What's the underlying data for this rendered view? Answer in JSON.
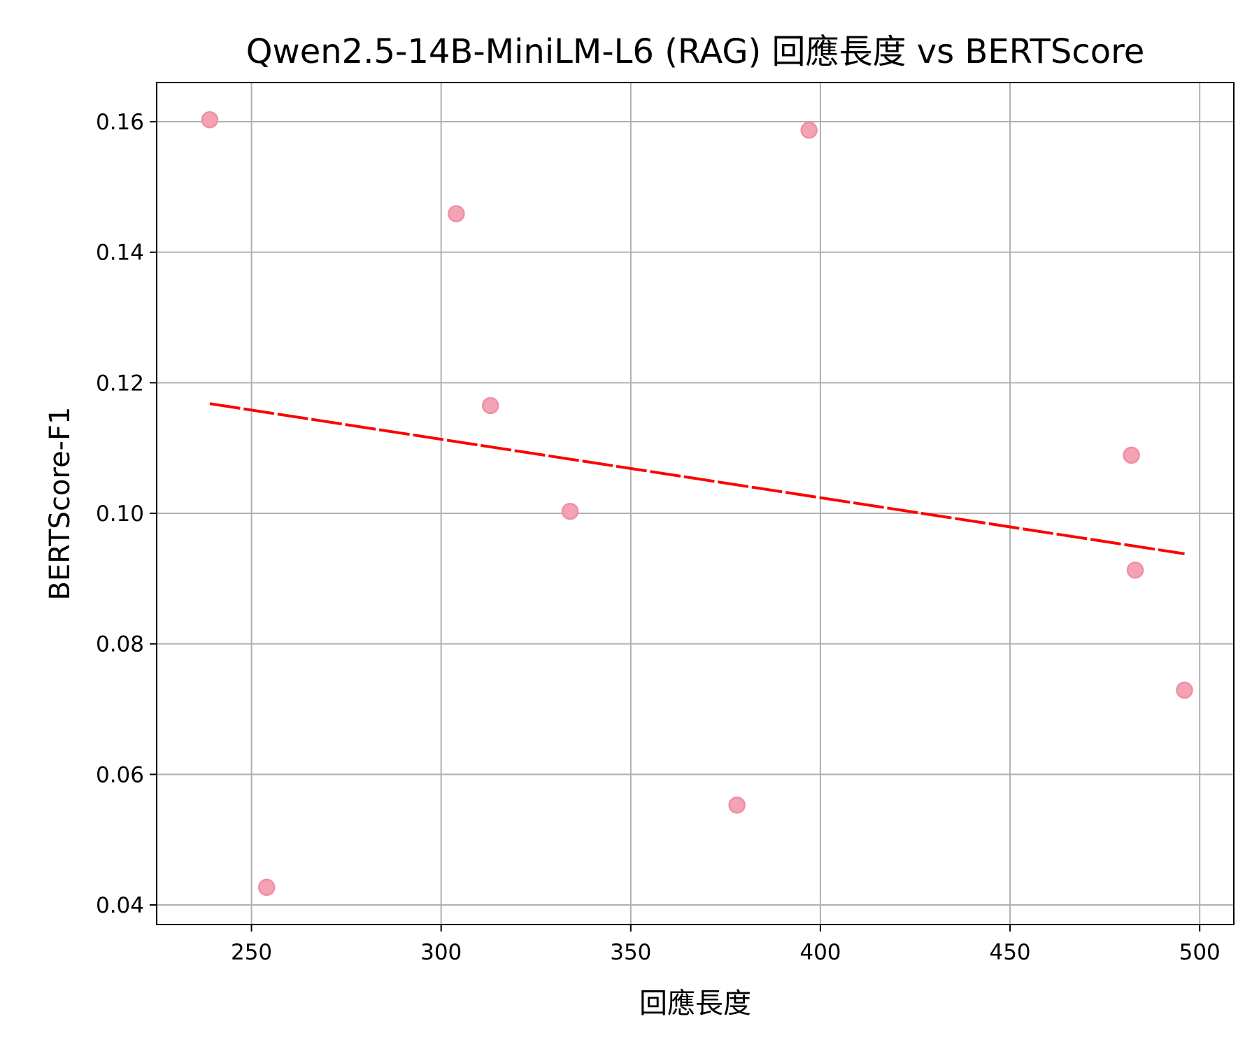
{
  "chart_data": {
    "type": "scatter",
    "title": "Qwen2.5-14B-MiniLM-L6 (RAG) 回應長度 vs BERTScore",
    "xlabel": "回應長度",
    "ylabel": "BERTScore-F1",
    "xlim": [
      225,
      509
    ],
    "ylim": [
      0.037,
      0.166
    ],
    "x_ticks": [
      250,
      300,
      350,
      400,
      450,
      500
    ],
    "x_tick_labels": [
      "250",
      "300",
      "350",
      "400",
      "450",
      "500"
    ],
    "y_ticks": [
      0.04,
      0.06,
      0.08,
      0.1,
      0.12,
      0.14,
      0.16
    ],
    "y_tick_labels": [
      "0.04",
      "0.06",
      "0.08",
      "0.10",
      "0.12",
      "0.14",
      "0.16"
    ],
    "grid": true,
    "series": [
      {
        "type": "scatter",
        "color": "#f4a3b4",
        "edge_color": "#ef8fa3",
        "points": [
          {
            "x": 239,
            "y": 0.1603
          },
          {
            "x": 254,
            "y": 0.0427
          },
          {
            "x": 304,
            "y": 0.1459
          },
          {
            "x": 313,
            "y": 0.1165
          },
          {
            "x": 334,
            "y": 0.1003
          },
          {
            "x": 378,
            "y": 0.0553
          },
          {
            "x": 397,
            "y": 0.1587
          },
          {
            "x": 482,
            "y": 0.1089
          },
          {
            "x": 483,
            "y": 0.0913
          },
          {
            "x": 496,
            "y": 0.0729
          }
        ]
      },
      {
        "type": "line",
        "style": "dashed",
        "color": "#ff0000",
        "x": [
          239,
          496
        ],
        "y": [
          0.1168,
          0.0938
        ]
      }
    ]
  }
}
